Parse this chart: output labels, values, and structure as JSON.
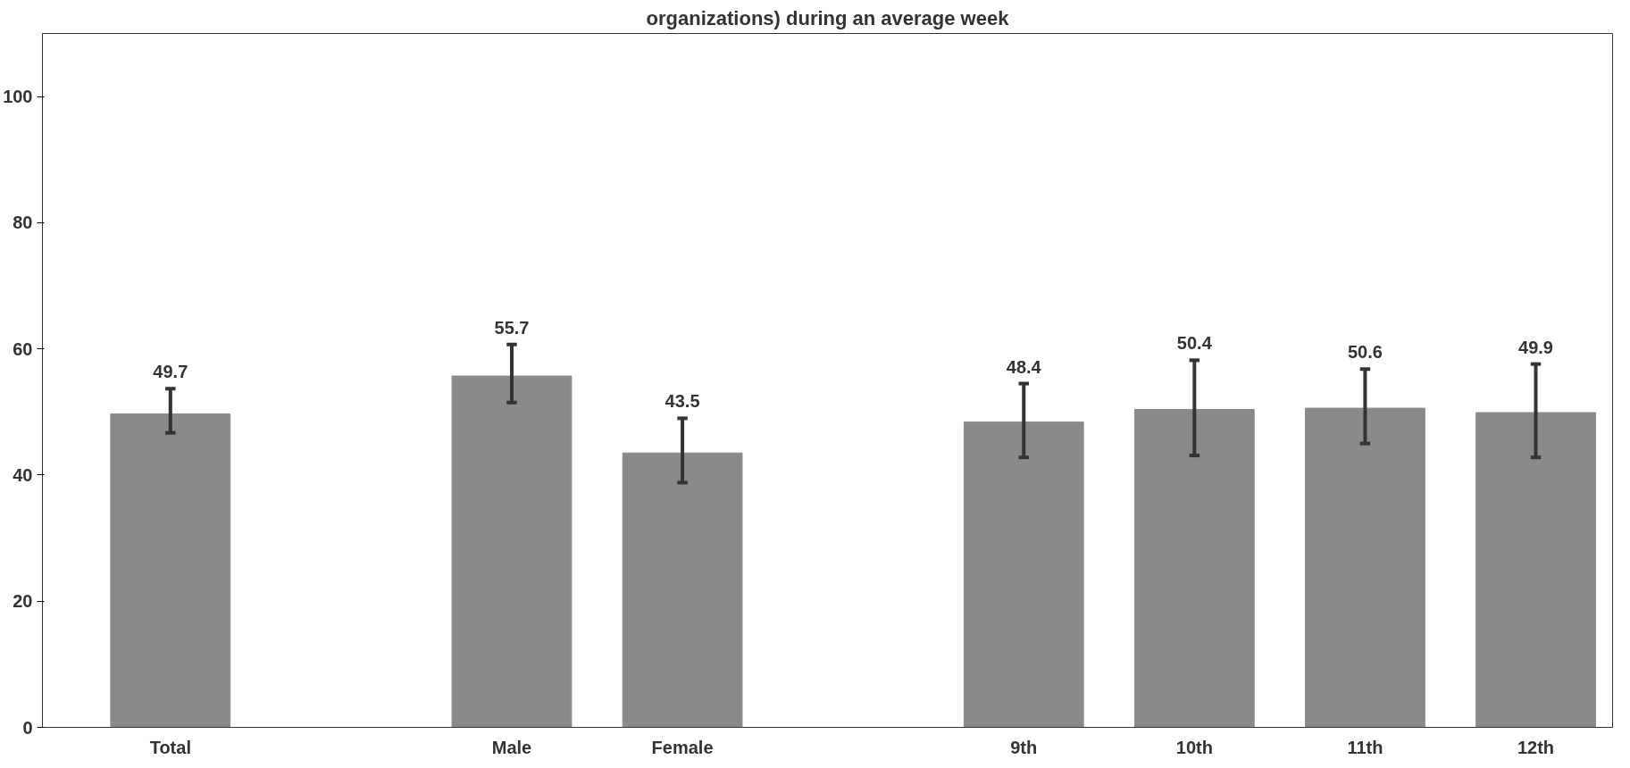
{
  "chart_data": {
    "type": "bar",
    "title": "organizations) during an average week",
    "categories": [
      "Total",
      null,
      "Male",
      "Female",
      null,
      "9th",
      "10th",
      "11th",
      "12th"
    ],
    "values": [
      49.7,
      null,
      55.7,
      43.5,
      null,
      48.4,
      50.4,
      50.6,
      49.9
    ],
    "errors": [
      [
        46.7,
        53.7
      ],
      null,
      [
        51.5,
        60.7
      ],
      [
        38.8,
        49.0
      ],
      null,
      [
        42.8,
        54.5
      ],
      [
        43.1,
        58.2
      ],
      [
        45.0,
        56.8
      ],
      [
        42.8,
        57.6
      ]
    ],
    "color": "#8a8a8a",
    "data_labels": true,
    "ylim": [
      0,
      110
    ],
    "yticks": [
      0,
      20,
      40,
      60,
      80,
      100
    ],
    "grid": false
  }
}
